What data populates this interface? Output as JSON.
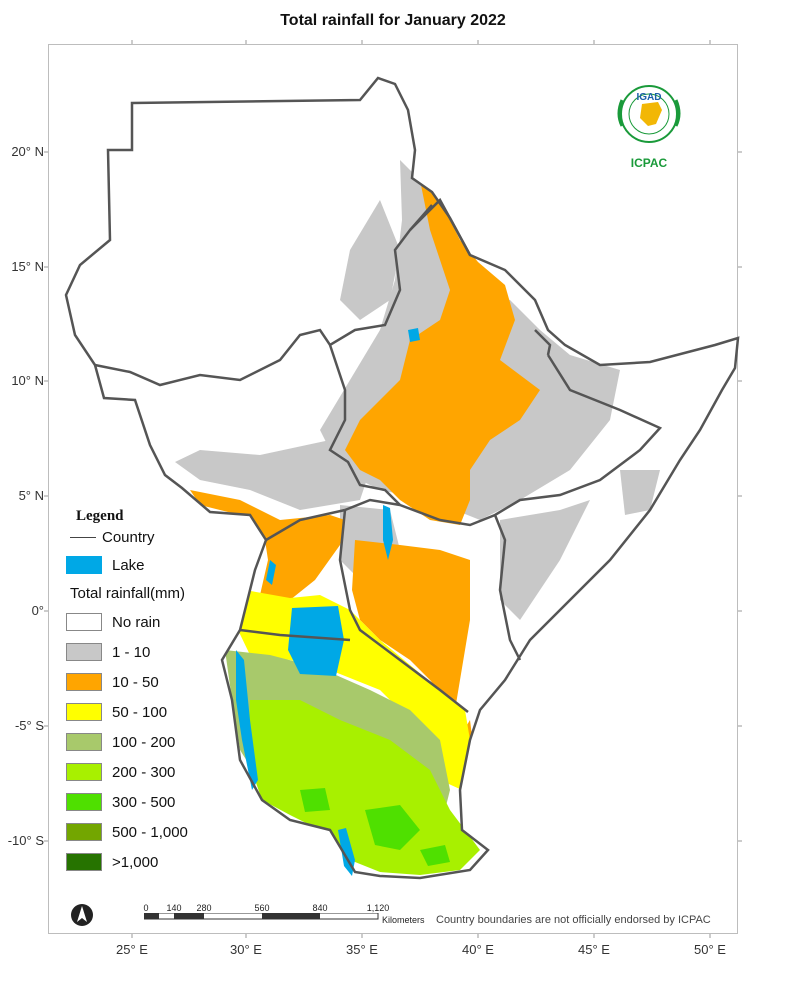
{
  "title": "Total rainfall for  January 2022",
  "latitude_labels": [
    {
      "label": "20° N",
      "lat": 20
    },
    {
      "label": "15° N",
      "lat": 15
    },
    {
      "label": "10° N",
      "lat": 10
    },
    {
      "label": "5° N",
      "lat": 5
    },
    {
      "label": "0°",
      "lat": 0
    },
    {
      "label": "-5° S",
      "lat": -5
    },
    {
      "label": "-10° S",
      "lat": -10
    }
  ],
  "longitude_labels": [
    {
      "label": "25° E",
      "lon": 25
    },
    {
      "label": "30° E",
      "lon": 30
    },
    {
      "label": "35° E",
      "lon": 35
    },
    {
      "label": "40° E",
      "lon": 40
    },
    {
      "label": "45° E",
      "lon": 45
    },
    {
      "label": "50° E",
      "lon": 50
    }
  ],
  "legend": {
    "title": "Legend",
    "country": "Country",
    "lake": "Lake",
    "rainfall_title": "Total rainfall(mm)",
    "classes": [
      {
        "label": "No rain",
        "color": "#ffffff"
      },
      {
        "label": "1 - 10",
        "color": "#c8c8c8"
      },
      {
        "label": "10 - 50",
        "color": "#ffa500"
      },
      {
        "label": "50 - 100",
        "color": "#ffff00"
      },
      {
        "label": "100 - 200",
        "color": "#a8c96b"
      },
      {
        "label": "200 - 300",
        "color": "#a8f000"
      },
      {
        "label": "300 - 500",
        "color": "#4fe000"
      },
      {
        "label": "500 - 1,000",
        "color": "#73a600"
      },
      {
        "label": ">1,000",
        "color": "#267300"
      }
    ],
    "lake_color": "#00a8e6"
  },
  "logo": {
    "top_text": "IGAD",
    "bottom_text": "ICPAC"
  },
  "scale_bar": {
    "ticks": [
      "0",
      "140",
      "280",
      "560",
      "840",
      "1,120"
    ],
    "unit": "Kilometers"
  },
  "disclaimer": "Country boundaries are not officially endorsed by ICPAC"
}
